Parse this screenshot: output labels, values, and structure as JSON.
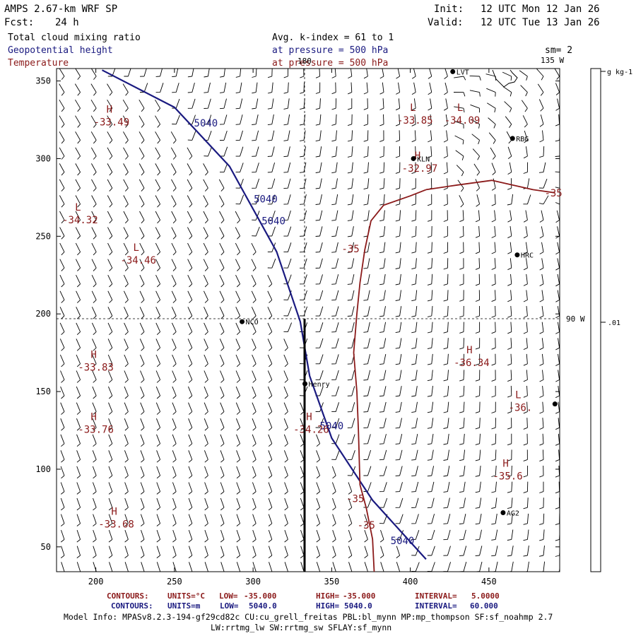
{
  "header": {
    "model": "AMPS 2.67-km WRF SP",
    "forecast_label": "Fcst:",
    "forecast_hours": "24 h",
    "init_label": "Init:",
    "init_time": "12 UTC Mon 12 Jan 26",
    "valid_label": "Valid:",
    "valid_time": "12 UTC Tue 13 Jan 26",
    "field1": "Total cloud mixing ratio",
    "field2": "Geopotential height",
    "field3": "Temperature",
    "avg_kindex": "Avg. k-index =  61 to   1",
    "pressure1": "at pressure =  500 hPa",
    "pressure2": "at pressure =  500 hPa",
    "smoothing": "sm= 2"
  },
  "colors": {
    "title": "#000000",
    "height_blue": "#1a1a80",
    "temp_red": "#8b1a1a",
    "barb": "#000000"
  },
  "chart_data": {
    "type": "contour-map",
    "x_ticks": [
      200,
      250,
      300,
      350,
      400,
      450
    ],
    "y_ticks": [
      50,
      100,
      150,
      200,
      250,
      300,
      350
    ],
    "xlim": [
      175,
      495
    ],
    "ylim": [
      34,
      358
    ],
    "meridians": [
      {
        "label": "180",
        "lon": 180
      },
      {
        "label": "135 W",
        "lon": -135
      },
      {
        "label": "90 W",
        "lon": -90
      }
    ],
    "colorbar": {
      "units": "g kg-1",
      "tick_label": ".01"
    },
    "stations": [
      {
        "name": "LVT",
        "x": 427,
        "y": 356
      },
      {
        "name": "RBG",
        "x": 465,
        "y": 313
      },
      {
        "name": "KLN",
        "x": 402,
        "y": 300
      },
      {
        "name": "HRC",
        "x": 468,
        "y": 238
      },
      {
        "name": "NCO",
        "x": 293,
        "y": 195
      },
      {
        "name": "Henry",
        "x": 333,
        "y": 155
      },
      {
        "name": "AG2",
        "x": 459,
        "y": 72
      },
      {
        "name": "",
        "x": 492,
        "y": 142
      }
    ],
    "extrema": [
      {
        "type": "H",
        "value": "-33.49",
        "x": 210,
        "y": 326
      },
      {
        "type": "L",
        "value": "-33.85",
        "x": 403,
        "y": 327
      },
      {
        "type": "L",
        "value": "-34.09",
        "x": 433,
        "y": 327
      },
      {
        "type": "H",
        "value": "-32.97",
        "x": 406,
        "y": 296
      },
      {
        "type": "L",
        "value": "-34.32",
        "x": 190,
        "y": 263
      },
      {
        "type": "L",
        "value": "-34.46",
        "x": 227,
        "y": 237
      },
      {
        "type": "H",
        "value": "-33.83",
        "x": 200,
        "y": 168
      },
      {
        "type": "H",
        "value": "-36.34",
        "x": 439,
        "y": 171
      },
      {
        "type": "L",
        "value": "-36.",
        "x": 470,
        "y": 142
      },
      {
        "type": "H",
        "value": "-33.76",
        "x": 200,
        "y": 128
      },
      {
        "type": "H",
        "value": "-34.26",
        "x": 337,
        "y": 128
      },
      {
        "type": "H",
        "value": "-35.6",
        "x": 462,
        "y": 98
      },
      {
        "type": "H",
        "value": "-33.68",
        "x": 213,
        "y": 67
      }
    ],
    "height_contour": {
      "value": 5040,
      "label": "5040",
      "points": [
        [
          204,
          357
        ],
        [
          250,
          333
        ],
        [
          285,
          295
        ],
        [
          315,
          240
        ],
        [
          330,
          195
        ],
        [
          336,
          160
        ],
        [
          350,
          120
        ],
        [
          376,
          80
        ],
        [
          410,
          42
        ]
      ],
      "labels": [
        [
          270,
          323
        ],
        [
          308,
          274
        ],
        [
          313,
          260
        ],
        [
          350,
          128
        ],
        [
          395,
          54
        ]
      ]
    },
    "temp_contour": {
      "value": -35,
      "label": "-35",
      "points": [
        [
          410,
          280
        ],
        [
          400,
          276
        ],
        [
          383,
          270
        ],
        [
          375,
          260
        ],
        [
          371,
          241
        ],
        [
          368,
          220
        ],
        [
          366,
          200
        ],
        [
          364,
          175
        ],
        [
          366,
          150
        ],
        [
          367,
          125
        ],
        [
          368,
          90
        ],
        [
          372,
          75
        ],
        [
          376,
          55
        ],
        [
          377,
          34
        ]
      ],
      "points_east": [
        [
          410,
          280
        ],
        [
          430,
          283
        ],
        [
          452,
          286
        ],
        [
          478,
          280
        ],
        [
          492,
          278
        ]
      ],
      "labels": [
        [
          491,
          278
        ],
        [
          362,
          242
        ],
        [
          365,
          81
        ],
        [
          372,
          64
        ]
      ]
    },
    "legend": {
      "line1": [
        "CONTOURS:",
        "UNITS=°C",
        "LOW=",
        "-35.000",
        "HIGH=",
        "-35.000",
        "INTERVAL=",
        "5.0000"
      ],
      "line2": [
        "CONTOURS:",
        "UNITS=m",
        "LOW=",
        "5040.0",
        "HIGH=",
        "5040.0",
        "INTERVAL=",
        "60.000"
      ]
    }
  },
  "footer": {
    "line1": "Model Info: MPASv8.2.3-194-gf29cd82c CU:cu_grell_freitas PBL:bl_mynn MP:mp_thompson SF:sf_noahmp 2.7",
    "line2": "LW:rrtmg_lw SW:rrtmg_sw SFLAY:sf_mynn"
  }
}
